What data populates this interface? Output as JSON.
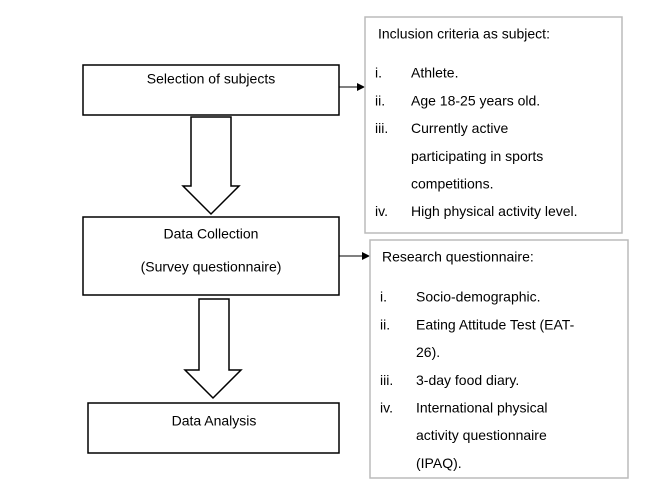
{
  "nodes": [
    {
      "lines": [
        "Selection of subjects"
      ]
    },
    {
      "lines": [
        "Data Collection",
        "(Survey questionnaire)"
      ]
    },
    {
      "lines": [
        "Data Analysis"
      ]
    }
  ],
  "panels": [
    {
      "title": "Inclusion criteria as subject:",
      "items": [
        {
          "numeral": "i.",
          "lines": [
            "Athlete."
          ]
        },
        {
          "numeral": "ii.",
          "lines": [
            "Age 18-25 years old."
          ]
        },
        {
          "numeral": "iii.",
          "lines": [
            "Currently active",
            "participating in sports",
            "competitions."
          ]
        },
        {
          "numeral": "iv.",
          "lines": [
            "High physical activity level."
          ]
        }
      ]
    },
    {
      "title": "Research questionnaire:",
      "items": [
        {
          "numeral": "i.",
          "lines": [
            "Socio-demographic."
          ]
        },
        {
          "numeral": "ii.",
          "lines": [
            "Eating Attitude Test (EAT-",
            "26)."
          ]
        },
        {
          "numeral": "iii.",
          "lines": [
            "3-day food diary."
          ]
        },
        {
          "numeral": "iv.",
          "lines": [
            "International physical",
            "activity questionnaire",
            "(IPAQ)."
          ]
        }
      ]
    }
  ]
}
